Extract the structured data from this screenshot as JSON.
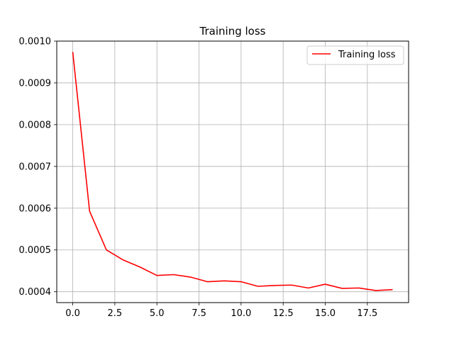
{
  "chart_data": {
    "type": "line",
    "title": "Training loss",
    "xlabel": "",
    "ylabel": "",
    "xlim": [
      -0.95,
      19.95
    ],
    "ylim": [
      0.000374,
      0.001
    ],
    "grid": true,
    "legend_position": "top-right",
    "x_ticks": [
      0.0,
      2.5,
      5.0,
      7.5,
      10.0,
      12.5,
      15.0,
      17.5
    ],
    "x_tick_labels": [
      "0.0",
      "2.5",
      "5.0",
      "7.5",
      "10.0",
      "12.5",
      "15.0",
      "17.5"
    ],
    "y_ticks": [
      0.0004,
      0.0005,
      0.0006,
      0.0007,
      0.0008,
      0.0009,
      0.001
    ],
    "y_tick_labels": [
      "0.0004",
      "0.0005",
      "0.0006",
      "0.0007",
      "0.0008",
      "0.0009",
      "0.0010"
    ],
    "series": [
      {
        "name": "Training loss",
        "color": "#ff0000",
        "x": [
          0,
          1,
          2,
          3,
          4,
          5,
          6,
          7,
          8,
          9,
          10,
          11,
          12,
          13,
          14,
          15,
          16,
          17,
          18,
          19
        ],
        "values": [
          0.000974,
          0.000593,
          0.0005,
          0.000476,
          0.000459,
          0.000439,
          0.000441,
          0.000435,
          0.000424,
          0.000426,
          0.000424,
          0.000413,
          0.000415,
          0.000416,
          0.000409,
          0.000418,
          0.000408,
          0.000409,
          0.000403,
          0.000405
        ]
      }
    ]
  },
  "colors": {
    "grid": "#b0b0b0",
    "axes": "#000000",
    "legend_border": "#cccccc"
  }
}
